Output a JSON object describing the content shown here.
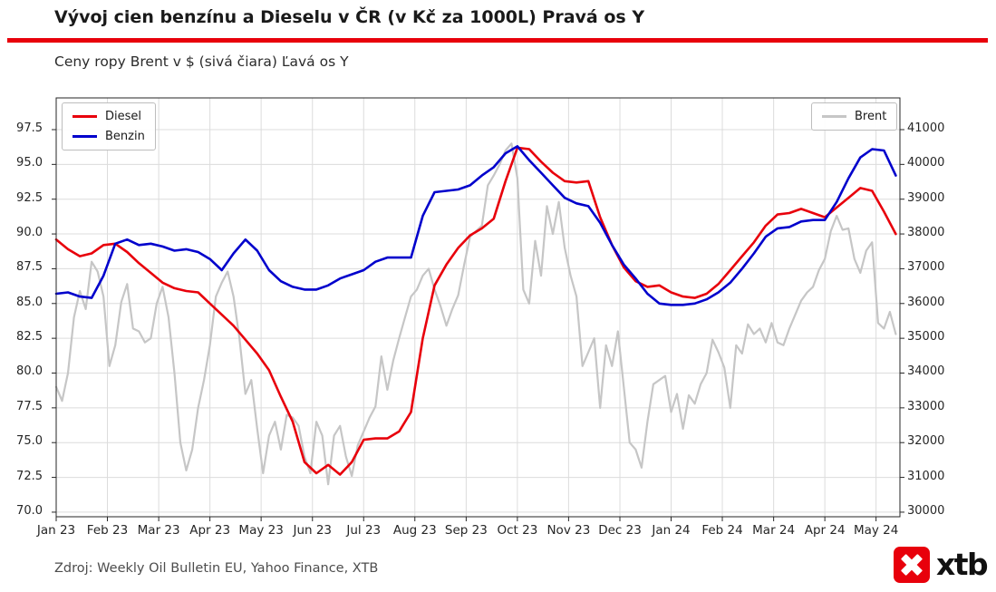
{
  "colors": {
    "diesel": "#e8000b",
    "benzin": "#0000cc",
    "brent": "#c6c6c6",
    "accent_rule": "#e8000b",
    "grid": "#dcdcdc",
    "frame": "#262626"
  },
  "footer": {
    "source": "Zdroj: Weekly Oil Bulletin EU, Yahoo Finance, XTB",
    "logo_text": "xtb"
  },
  "chart_data": {
    "type": "line",
    "title": "Vývoj cien benzínu a Dieselu v ČR (v Kč za 1000L) Pravá os Y",
    "subtitle": "Ceny ropy Brent v $ (sivá čiara) Ľavá os Y",
    "grid": true,
    "x_tick_labels": [
      "Jan 23",
      "Feb 23",
      "Mar 23",
      "Apr 23",
      "May 23",
      "Jun 23",
      "Jul 23",
      "Aug 23",
      "Sep 23",
      "Oct 23",
      "Nov 23",
      "Dec 23",
      "Jan 24",
      "Feb 24",
      "Mar 24",
      "Apr 24",
      "May 24"
    ],
    "x_ticks_weeks": [
      0,
      4.33,
      8.67,
      13,
      17.33,
      21.67,
      26,
      30.33,
      34.67,
      39,
      43.33,
      47.67,
      52,
      56.33,
      60.67,
      65,
      69.33
    ],
    "x_range_weeks": [
      0,
      71.35
    ],
    "left_axis": {
      "unit": "$ (Brent)",
      "ticks": [
        70.0,
        72.5,
        75.0,
        77.5,
        80.0,
        82.5,
        85.0,
        87.5,
        90.0,
        92.5,
        95.0,
        97.5
      ],
      "range": [
        69.67,
        99.78
      ]
    },
    "right_axis": {
      "unit": "Kč za 1000L",
      "ticks": [
        30000,
        31000,
        32000,
        33000,
        34000,
        35000,
        36000,
        37000,
        38000,
        39000,
        40000,
        41000
      ],
      "range": [
        29868,
        41912
      ]
    },
    "legend": {
      "left": [
        "Diesel",
        "Benzin"
      ],
      "right": [
        "Brent"
      ]
    },
    "series": [
      {
        "name": "Diesel",
        "axis": "right",
        "unit": "Kč za 1000L",
        "color_key": "diesel",
        "x_start_weeks": 0,
        "x_step_weeks": 1,
        "values": [
          37840,
          37560,
          37360,
          37440,
          37680,
          37720,
          37480,
          37160,
          36880,
          36600,
          36440,
          36360,
          36320,
          36000,
          35680,
          35360,
          34960,
          34560,
          34080,
          33320,
          32600,
          31440,
          31120,
          31360,
          31080,
          31440,
          32080,
          32120,
          32120,
          32320,
          32880,
          35000,
          36520,
          37120,
          37600,
          37960,
          38160,
          38440,
          39520,
          40480,
          40440,
          40080,
          39760,
          39520,
          39480,
          39520,
          38480,
          37680,
          37040,
          36640,
          36480,
          36520,
          36320,
          36200,
          36160,
          36280,
          36560,
          36960,
          37360,
          37760,
          38240,
          38560,
          38600,
          38720,
          38600,
          38480,
          38760,
          39040,
          39320,
          39240,
          38640,
          38000
        ]
      },
      {
        "name": "Benzin",
        "axis": "right",
        "unit": "Kč za 1000L",
        "color_key": "benzin",
        "x_start_weeks": 0,
        "x_step_weeks": 1,
        "values": [
          36280,
          36320,
          36200,
          36160,
          36800,
          37720,
          37840,
          37680,
          37720,
          37640,
          37520,
          37560,
          37480,
          37280,
          36960,
          37440,
          37840,
          37520,
          36960,
          36640,
          36480,
          36400,
          36400,
          36520,
          36720,
          36840,
          36960,
          37200,
          37320,
          37320,
          37320,
          38520,
          39200,
          39240,
          39280,
          39400,
          39680,
          39920,
          40320,
          40520,
          40120,
          39760,
          39400,
          39040,
          38880,
          38800,
          38320,
          37680,
          37120,
          36720,
          36280,
          36000,
          35960,
          35960,
          36000,
          36120,
          36320,
          36600,
          37000,
          37440,
          37920,
          38160,
          38200,
          38360,
          38400,
          38400,
          38920,
          39600,
          40200,
          40440,
          40400,
          39680
        ]
      },
      {
        "name": "Brent",
        "axis": "left",
        "unit": "USD",
        "color_key": "brent",
        "x_start_weeks": 0,
        "x_step_weeks": 0.5,
        "values": [
          79.0,
          78.0,
          80.0,
          84.0,
          85.9,
          84.6,
          88.0,
          87.3,
          85.5,
          80.5,
          82.0,
          85.1,
          86.4,
          83.2,
          83.0,
          82.2,
          82.5,
          85.0,
          86.2,
          84.0,
          80.0,
          75.0,
          73.0,
          74.5,
          77.5,
          79.5,
          82.0,
          85.5,
          86.5,
          87.3,
          85.5,
          82.5,
          78.5,
          79.5,
          76.0,
          72.8,
          75.5,
          76.5,
          74.5,
          77.0,
          76.8,
          76.2,
          74.0,
          72.8,
          76.5,
          75.5,
          72.0,
          75.5,
          76.2,
          74.0,
          72.6,
          74.8,
          75.8,
          76.8,
          77.6,
          81.2,
          78.8,
          80.9,
          82.5,
          84.0,
          85.5,
          86.0,
          87.0,
          87.5,
          86.0,
          84.8,
          83.4,
          84.6,
          85.6,
          87.8,
          89.8,
          90.2,
          90.6,
          93.5,
          94.2,
          95.0,
          96.0,
          96.5,
          94.0,
          86.0,
          85.0,
          89.5,
          87.0,
          92.0,
          90.0,
          92.3,
          89.0,
          87.0,
          85.5,
          80.5,
          81.5,
          82.5,
          77.5,
          82.0,
          80.5,
          83.0,
          79.0,
          75.0,
          74.5,
          73.2,
          76.5,
          79.2,
          79.5,
          79.8,
          77.2,
          78.5,
          76.0,
          78.4,
          77.8,
          79.2,
          80.0,
          82.4,
          81.5,
          80.4,
          77.5,
          82.0,
          81.4,
          83.5,
          82.8,
          83.2,
          82.2,
          83.6,
          82.2,
          82.0,
          83.2,
          84.2,
          85.2,
          85.8,
          86.2,
          87.4,
          88.2,
          90.2,
          91.3,
          90.3,
          90.4,
          88.2,
          87.2,
          88.8,
          89.4,
          83.6,
          83.2,
          84.4,
          82.8
        ]
      }
    ]
  }
}
